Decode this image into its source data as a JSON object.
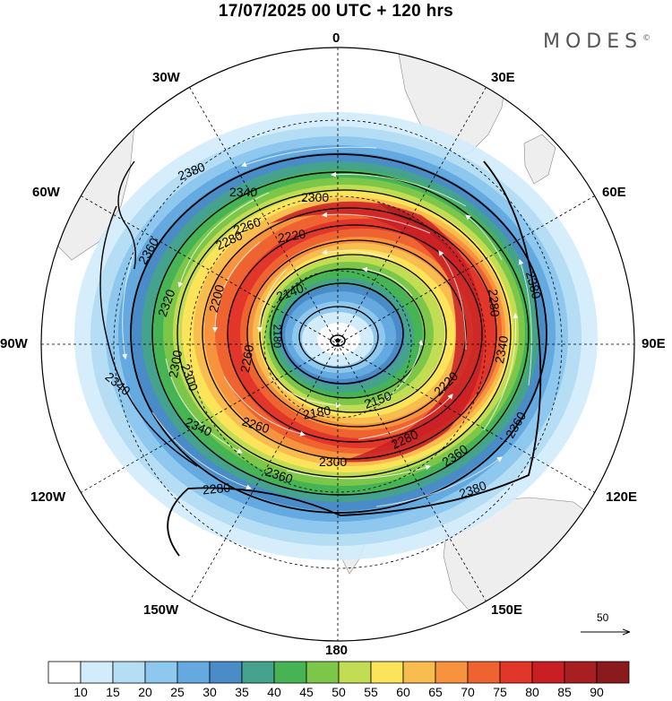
{
  "header": {
    "title": "17/07/2025  00 UTC  + 120 hrs",
    "brand": "MODES",
    "brand_mark": "©"
  },
  "map": {
    "projection": "polar stereographic (south pole centred)",
    "longitude_labels": {
      "top": "0",
      "top_right": "30E",
      "upper_right": "60E",
      "right": "90E",
      "lower_right": "120E",
      "bottom_right": "150E",
      "bottom": "180",
      "bottom_left": "150W",
      "lower_left": "120W",
      "left": "90W",
      "upper_left": "60W",
      "top_left": "30W"
    },
    "contour_labels": [
      "2380",
      "2340",
      "2300",
      "2220",
      "2280",
      "2260",
      "2360",
      "2320",
      "2200",
      "2140",
      "2150",
      "2180",
      "2220",
      "2260",
      "2260",
      "2280",
      "2300",
      "2340",
      "2360",
      "2380",
      "2380",
      "2360",
      "2340",
      "2280",
      "2300",
      "2280",
      "2180",
      "2340",
      "2360",
      "2300"
    ],
    "vector_reference": "50"
  },
  "colorbar": {
    "colors": [
      "#ffffff",
      "#d2ecfb",
      "#b5def5",
      "#8ec8ee",
      "#64a9e0",
      "#4a8cc7",
      "#45a28c",
      "#46b455",
      "#7cc74a",
      "#c2dc53",
      "#fbe35a",
      "#f9bd4f",
      "#f7923f",
      "#ef6331",
      "#e2362a",
      "#c91f24",
      "#a81f22",
      "#8a1a1c"
    ],
    "tick_labels": [
      "10",
      "15",
      "20",
      "25",
      "30",
      "35",
      "40",
      "45",
      "50",
      "55",
      "60",
      "65",
      "70",
      "75",
      "80",
      "85",
      "90"
    ]
  }
}
